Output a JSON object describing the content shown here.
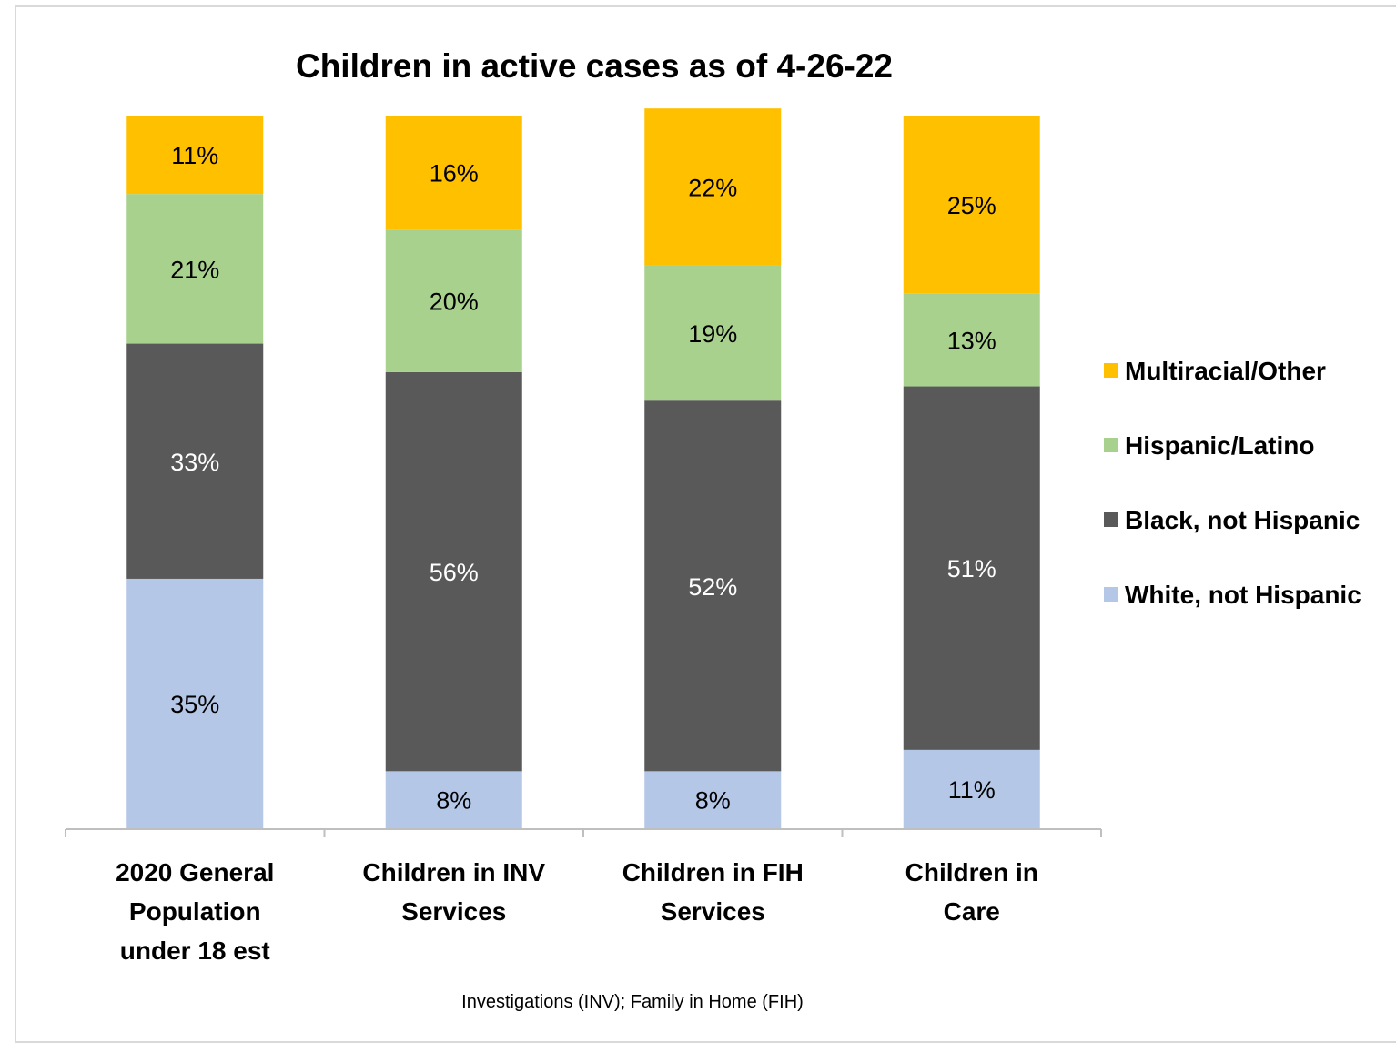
{
  "chart_data": {
    "type": "bar",
    "stacked": true,
    "title": "Children in active cases as of 4-26-22",
    "categories": [
      [
        "2020 General",
        "Population",
        "under 18 est"
      ],
      [
        "Children in INV",
        "Services"
      ],
      [
        "Children in FIH",
        "Services"
      ],
      [
        "Children in",
        "Care"
      ]
    ],
    "series": [
      {
        "name": "White, not Hispanic",
        "color": "#b4c7e7",
        "label_color": "#000000",
        "values": [
          35,
          8,
          8,
          11
        ]
      },
      {
        "name": "Black, not Hispanic",
        "color": "#595959",
        "label_color": "#ffffff",
        "values": [
          33,
          56,
          52,
          51
        ]
      },
      {
        "name": "Hispanic/Latino",
        "color": "#a9d18e",
        "label_color": "#000000",
        "values": [
          21,
          20,
          19,
          13
        ]
      },
      {
        "name": "Multiracial/Other",
        "color": "#ffc000",
        "label_color": "#000000",
        "values": [
          11,
          16,
          22,
          25
        ]
      }
    ],
    "value_suffix": "%",
    "ylim": [
      0,
      100
    ],
    "grid": false,
    "legend_position": "right",
    "legend_order": [
      "Multiracial/Other",
      "Hispanic/Latino",
      "Black, not Hispanic",
      "White, not Hispanic"
    ]
  },
  "footnote": "Investigations (INV); Family in Home (FIH)"
}
